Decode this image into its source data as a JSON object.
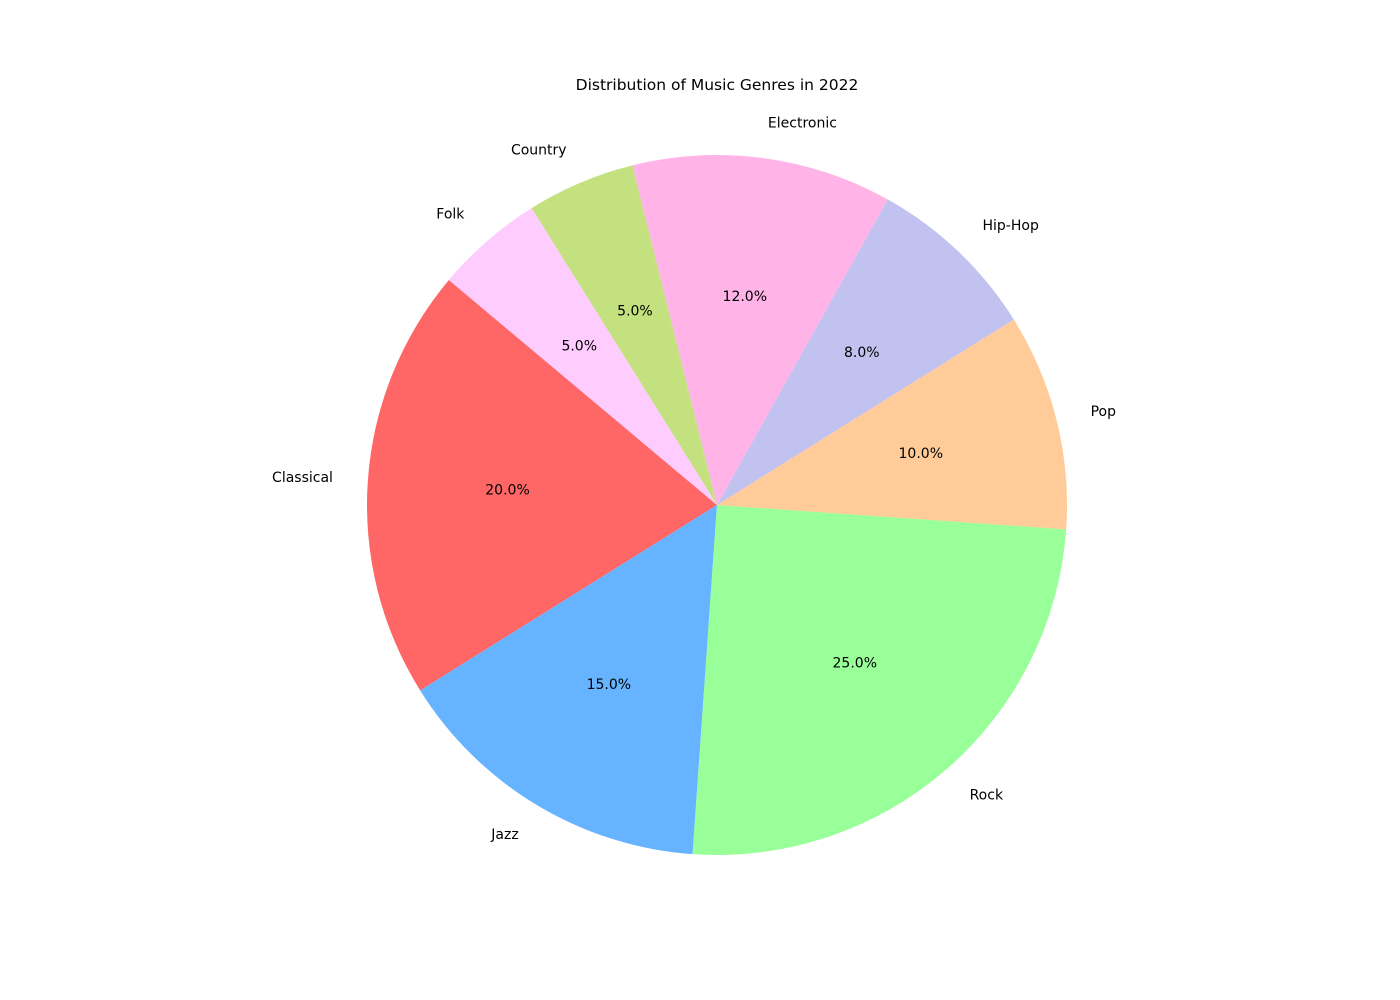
{
  "chart_data": {
    "type": "pie",
    "title": "Distribution of Music Genres in 2022",
    "start_angle_deg": 140,
    "direction": "counterclockwise",
    "slices": [
      {
        "label": "Classical",
        "value": 20,
        "pct_label": "20.0%",
        "color": "#ff6666"
      },
      {
        "label": "Jazz",
        "value": 15,
        "pct_label": "15.0%",
        "color": "#66b3ff"
      },
      {
        "label": "Rock",
        "value": 25,
        "pct_label": "25.0%",
        "color": "#99ff99"
      },
      {
        "label": "Pop",
        "value": 10,
        "pct_label": "10.0%",
        "color": "#ffcc99"
      },
      {
        "label": "Hip-Hop",
        "value": 8,
        "pct_label": "8.0%",
        "color": "#c2c2f0"
      },
      {
        "label": "Electronic",
        "value": 12,
        "pct_label": "12.0%",
        "color": "#ffb3e6"
      },
      {
        "label": "Country",
        "value": 5,
        "pct_label": "5.0%",
        "color": "#c4e17f"
      },
      {
        "label": "Folk",
        "value": 5,
        "pct_label": "5.0%",
        "color": "#ffccff"
      }
    ]
  }
}
